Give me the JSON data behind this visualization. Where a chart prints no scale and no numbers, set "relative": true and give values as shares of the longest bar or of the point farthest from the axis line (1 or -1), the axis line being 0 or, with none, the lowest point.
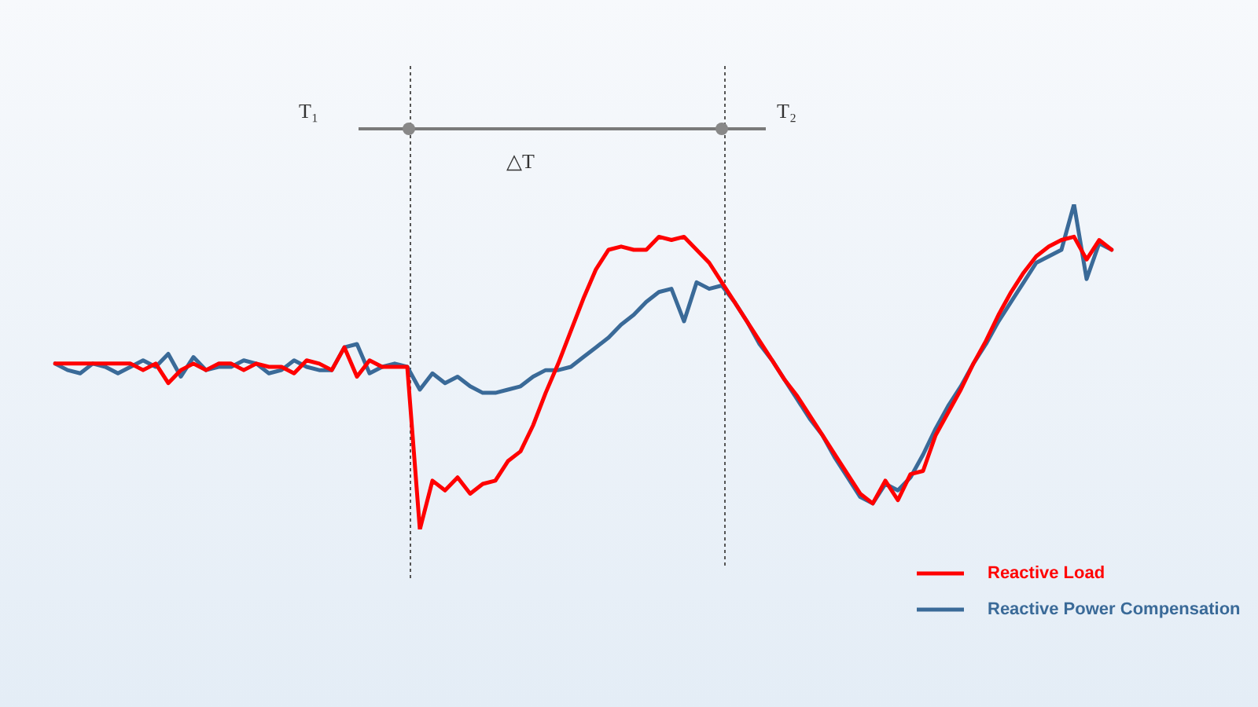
{
  "chart_data": {
    "type": "line",
    "relative": true,
    "categories": [
      null,
      null,
      null,
      null,
      null,
      null,
      null,
      null,
      null,
      null,
      null,
      null,
      null,
      null,
      null,
      null,
      null,
      null,
      null,
      null,
      null,
      null,
      null,
      null,
      null,
      null,
      null,
      null,
      null,
      null,
      null,
      null,
      null,
      null,
      null,
      null,
      null,
      null,
      null,
      null,
      null,
      null,
      null,
      null,
      null,
      null,
      null,
      null,
      null,
      null,
      null,
      null,
      null,
      null,
      null,
      null,
      null,
      null,
      null,
      null,
      null,
      null,
      null,
      null,
      null,
      null,
      null,
      null,
      null,
      null,
      null,
      null,
      null,
      null,
      null,
      null,
      null,
      null,
      null,
      null,
      null,
      null,
      null,
      null,
      null
    ],
    "series": [
      {
        "name": "Reactive Load",
        "color": "#ff0000",
        "values": [
          0.51,
          0.51,
          0.51,
          0.51,
          0.51,
          0.51,
          0.51,
          0.49,
          0.51,
          0.45,
          0.49,
          0.51,
          0.49,
          0.51,
          0.51,
          0.49,
          0.51,
          0.5,
          0.5,
          0.48,
          0.52,
          0.51,
          0.49,
          0.56,
          0.47,
          0.52,
          0.5,
          0.5,
          0.5,
          0,
          0.15,
          0.12,
          0.16,
          0.11,
          0.14,
          0.15,
          0.21,
          0.24,
          0.32,
          0.42,
          0.51,
          0.61,
          0.71,
          0.8,
          0.86,
          0.87,
          0.86,
          0.86,
          0.9,
          0.89,
          0.9,
          0.86,
          0.82,
          0.76,
          0.7,
          0.64,
          0.58,
          0.52,
          0.46,
          0.41,
          0.35,
          0.29,
          0.23,
          0.17,
          0.11,
          0.08,
          0.15,
          0.09,
          0.17,
          0.18,
          0.29,
          0.36,
          0.43,
          0.51,
          0.58,
          0.66,
          0.73,
          0.79,
          0.84,
          0.87,
          0.89,
          0.9,
          0.83,
          0.89,
          0.86
        ]
      },
      {
        "name": "Reactive Power Compensation",
        "color": "#3a6a98",
        "values": [
          0.51,
          0.49,
          0.48,
          0.51,
          0.5,
          0.48,
          0.5,
          0.52,
          0.5,
          0.54,
          0.47,
          0.53,
          0.49,
          0.5,
          0.5,
          0.52,
          0.51,
          0.48,
          0.49,
          0.52,
          0.5,
          0.49,
          0.49,
          0.56,
          0.57,
          0.48,
          0.5,
          0.51,
          0.5,
          0.43,
          0.48,
          0.45,
          0.47,
          0.44,
          0.42,
          0.42,
          0.43,
          0.44,
          0.47,
          0.49,
          0.49,
          0.5,
          0.53,
          0.56,
          0.59,
          0.63,
          0.66,
          0.7,
          0.73,
          0.74,
          0.64,
          0.76,
          0.74,
          0.75,
          0.7,
          0.64,
          0.57,
          0.52,
          0.46,
          0.4,
          0.34,
          0.29,
          0.22,
          0.16,
          0.1,
          0.08,
          0.14,
          0.12,
          0.16,
          0.23,
          0.31,
          0.38,
          0.44,
          0.51,
          0.57,
          0.64,
          0.7,
          0.76,
          0.82,
          0.84,
          0.86,
          1.0,
          0.77,
          0.88,
          0.86
        ]
      }
    ],
    "annotations": [
      "T₁",
      "T₂",
      "△T"
    ],
    "legend": "bottom right",
    "marker": "none",
    "line_style": "solid"
  }
}
